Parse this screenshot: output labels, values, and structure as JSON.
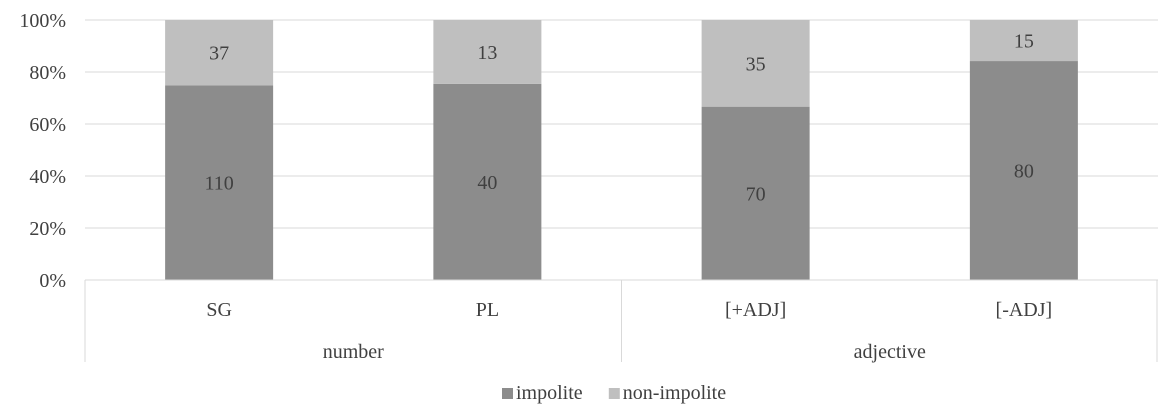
{
  "chart_data": {
    "type": "bar",
    "stacked": "percent",
    "categories": [
      "SG",
      "PL",
      "[+ADJ]",
      "[-ADJ]"
    ],
    "groups": [
      {
        "label": "number",
        "categories": [
          "SG",
          "PL"
        ]
      },
      {
        "label": "adjective",
        "categories": [
          "[+ADJ]",
          "[-ADJ]"
        ]
      }
    ],
    "series": [
      {
        "name": "impolite",
        "values": [
          110,
          40,
          70,
          80
        ],
        "color": "#8c8c8c"
      },
      {
        "name": "non-impolite",
        "values": [
          37,
          13,
          35,
          15
        ],
        "color": "#bfbfbf"
      }
    ],
    "y_ticks": [
      "0%",
      "20%",
      "40%",
      "60%",
      "80%",
      "100%"
    ],
    "ylim": [
      0,
      100
    ],
    "grid": true,
    "legend_position": "bottom",
    "title": "",
    "xlabel": "",
    "ylabel": ""
  }
}
